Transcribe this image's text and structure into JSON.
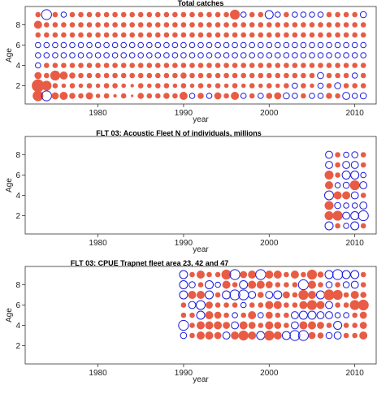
{
  "chart_data": [
    {
      "type": "scatter",
      "title": "Total catches",
      "xlabel": "year",
      "ylabel": "Age",
      "xlim": [
        1971.5,
        2012.5
      ],
      "ylim": [
        0.2,
        9.8
      ],
      "xticks": [
        1980,
        1990,
        2000,
        2010
      ],
      "yticks": [
        2,
        4,
        6,
        8
      ],
      "grid": false,
      "marker": "circle bubble; size = magnitude of residual",
      "positive_color": "#e85c45",
      "negative_color": "#1a1adb",
      "x": [
        1973,
        1974,
        1975,
        1976,
        1977,
        1978,
        1979,
        1980,
        1981,
        1982,
        1983,
        1984,
        1985,
        1986,
        1987,
        1988,
        1989,
        1990,
        1991,
        1992,
        1993,
        1994,
        1995,
        1996,
        1997,
        1998,
        1999,
        2000,
        2001,
        2002,
        2003,
        2004,
        2005,
        2006,
        2007,
        2008,
        2009,
        2010,
        2011
      ],
      "ages": [
        1,
        2,
        3,
        4,
        5,
        6,
        7,
        8,
        9
      ],
      "residuals": [
        [
          0.6,
          -0.55,
          0.4,
          0.45,
          0.35,
          0.3,
          0.4,
          0.25,
          0.3,
          0.2,
          0.3,
          0.15,
          0.35,
          0.3,
          0.3,
          0.35,
          0.3,
          0.45,
          -0.3,
          0.35,
          -0.3,
          0.4,
          0.3,
          0.45,
          -0.3,
          0.3,
          -0.3,
          0.35,
          0.4,
          -0.35,
          -0.3,
          0.3,
          -0.3,
          -0.3,
          0.35,
          0.3,
          -0.4,
          -0.3,
          -0.35
        ],
        [
          0.7,
          0.55,
          0.3,
          0.25,
          0.3,
          0.25,
          0.3,
          0.25,
          0.3,
          0.3,
          0.25,
          0.2,
          0.3,
          0.25,
          0.3,
          0.3,
          0.25,
          0.3,
          0.25,
          0.3,
          0.25,
          0.3,
          0.25,
          0.3,
          0.25,
          0.3,
          0.25,
          0.3,
          0.25,
          0.3,
          -0.3,
          0.3,
          0.25,
          -0.3,
          0.3,
          -0.35,
          0.3,
          0.3,
          0.3
        ],
        [
          0.4,
          0.3,
          0.55,
          0.45,
          0.35,
          0.3,
          0.3,
          0.3,
          0.3,
          0.3,
          0.3,
          0.3,
          0.3,
          0.3,
          0.3,
          0.3,
          0.3,
          0.35,
          0.3,
          0.3,
          0.3,
          0.3,
          0.3,
          0.3,
          0.3,
          0.3,
          0.3,
          0.3,
          0.3,
          0.3,
          0.3,
          0.3,
          0.3,
          -0.35,
          0.3,
          0.3,
          0.3,
          -0.3,
          0.3
        ],
        [
          -0.3,
          0.3,
          0.3,
          0.3,
          0.3,
          0.3,
          0.3,
          0.3,
          0.3,
          0.3,
          0.3,
          0.3,
          0.3,
          0.3,
          0.3,
          0.3,
          0.3,
          0.3,
          0.3,
          0.3,
          0.3,
          0.3,
          0.3,
          0.3,
          0.3,
          0.3,
          0.3,
          0.3,
          0.3,
          0.3,
          0.3,
          0.3,
          0.3,
          0.3,
          0.3,
          0.3,
          0.3,
          0.3,
          0.3
        ],
        [
          -0.3,
          -0.3,
          -0.3,
          -0.3,
          -0.3,
          -0.3,
          -0.3,
          -0.3,
          -0.3,
          -0.3,
          -0.3,
          -0.3,
          -0.3,
          -0.3,
          -0.3,
          -0.3,
          -0.3,
          -0.3,
          -0.3,
          -0.3,
          -0.3,
          -0.3,
          -0.3,
          -0.3,
          -0.3,
          -0.3,
          -0.3,
          -0.3,
          -0.3,
          -0.3,
          -0.3,
          -0.3,
          -0.3,
          -0.3,
          -0.3,
          -0.3,
          -0.3,
          -0.3,
          -0.3
        ],
        [
          -0.3,
          -0.3,
          -0.3,
          -0.3,
          -0.3,
          -0.3,
          -0.3,
          -0.3,
          -0.3,
          -0.3,
          -0.3,
          -0.3,
          -0.3,
          -0.3,
          -0.3,
          -0.3,
          -0.3,
          -0.3,
          -0.3,
          -0.3,
          -0.3,
          -0.3,
          -0.3,
          -0.3,
          -0.3,
          -0.3,
          -0.3,
          -0.3,
          -0.3,
          -0.3,
          -0.3,
          -0.3,
          -0.3,
          -0.3,
          -0.3,
          -0.3,
          -0.3,
          -0.3,
          -0.3
        ],
        [
          0.3,
          0.3,
          0.3,
          0.3,
          0.3,
          0.3,
          0.3,
          0.3,
          0.3,
          0.3,
          0.3,
          0.3,
          0.3,
          0.3,
          0.3,
          0.3,
          0.3,
          0.3,
          0.3,
          0.3,
          0.3,
          0.3,
          0.3,
          0.3,
          0.3,
          0.3,
          0.3,
          0.3,
          0.3,
          0.3,
          0.3,
          0.3,
          0.3,
          0.3,
          0.3,
          0.3,
          0.3,
          0.3,
          0.3
        ],
        [
          0.45,
          0.3,
          0.3,
          0.3,
          0.3,
          0.3,
          0.3,
          0.3,
          0.3,
          0.3,
          0.3,
          0.3,
          0.3,
          0.3,
          0.3,
          0.3,
          0.3,
          0.3,
          0.3,
          0.3,
          0.3,
          0.3,
          0.3,
          0.3,
          0.3,
          0.3,
          0.3,
          0.3,
          0.3,
          0.3,
          0.3,
          0.3,
          0.3,
          0.3,
          0.3,
          0.3,
          0.3,
          0.3,
          0.3
        ],
        [
          0.3,
          -0.55,
          0.3,
          -0.3,
          0.3,
          0.3,
          0.3,
          0.3,
          0.3,
          0.3,
          0.3,
          0.3,
          0.3,
          0.3,
          0.3,
          0.3,
          0.3,
          0.3,
          0.3,
          0.3,
          0.3,
          0.3,
          0.3,
          0.55,
          -0.3,
          0.3,
          0.3,
          -0.45,
          -0.3,
          0.3,
          -0.3,
          -0.3,
          -0.3,
          -0.3,
          0.3,
          0.3,
          0.3,
          0.3,
          -0.35
        ]
      ]
    },
    {
      "type": "scatter",
      "title": "FLT 03: Acoustic Fleet  N of individuals, millions",
      "xlabel": "year",
      "ylabel": "Age",
      "xlim": [
        1971.5,
        2012.5
      ],
      "ylim": [
        0.2,
        9.8
      ],
      "xticks": [
        1980,
        1990,
        2000,
        2010
      ],
      "yticks": [
        2,
        4,
        6,
        8
      ],
      "grid": false,
      "positive_color": "#e85c45",
      "negative_color": "#1a1adb",
      "x": [
        2007,
        2008,
        2009,
        2010,
        2011
      ],
      "ages": [
        1,
        2,
        3,
        4,
        5,
        6,
        7,
        8
      ],
      "residuals": [
        [
          -0.45,
          0.3,
          -0.3,
          -0.45,
          0.3
        ],
        [
          0.5,
          0.55,
          -0.4,
          -0.45,
          -0.55
        ],
        [
          0.5,
          -0.35,
          -0.3,
          -0.3,
          -0.4
        ],
        [
          -0.5,
          0.45,
          0.45,
          -0.4,
          0.3
        ],
        [
          0.45,
          -0.3,
          -0.35,
          0.55,
          -0.4
        ],
        [
          0.5,
          0.3,
          -0.45,
          -0.45,
          -0.3
        ],
        [
          -0.4,
          0.3,
          -0.4,
          -0.4,
          0.3
        ],
        [
          -0.4,
          0.3,
          -0.3,
          -0.35,
          0.3
        ]
      ]
    },
    {
      "type": "scatter",
      "title": "FLT 03: CPUE Trapnet fleet area 23, 42 and 47",
      "xlabel": "year",
      "ylabel": "Age",
      "xlim": [
        1971.5,
        2012.5
      ],
      "ylim": [
        0.2,
        9.8
      ],
      "xticks": [
        1980,
        1990,
        2000,
        2010
      ],
      "yticks": [
        2,
        4,
        6,
        8
      ],
      "grid": false,
      "positive_color": "#e85c45",
      "negative_color": "#1a1adb",
      "x": [
        1990,
        1991,
        1992,
        1993,
        1994,
        1995,
        1996,
        1997,
        1998,
        1999,
        2000,
        2001,
        2002,
        2003,
        2004,
        2005,
        2006,
        2007,
        2008,
        2009,
        2010,
        2011
      ],
      "ages": [
        3,
        4,
        5,
        6,
        7,
        8,
        9
      ],
      "residuals": [
        [
          -0.35,
          0.3,
          0.45,
          0.45,
          0.4,
          -0.4,
          0.45,
          0.55,
          0.45,
          -0.45,
          0.55,
          0.45,
          -0.45,
          -0.55,
          -0.55,
          0.4,
          0.35,
          -0.35,
          -0.4,
          0.3,
          0.3,
          0.45
        ],
        [
          -0.55,
          0.3,
          0.45,
          0.45,
          0.45,
          0.4,
          -0.4,
          0.45,
          0.4,
          0.3,
          0.45,
          0.4,
          0.3,
          -0.4,
          0.45,
          0.45,
          0.4,
          0.3,
          -0.45,
          0.3,
          0.3,
          0.4
        ],
        [
          0.3,
          0.3,
          -0.45,
          0.45,
          0.4,
          0.3,
          -0.3,
          0.3,
          0.45,
          -0.3,
          0.4,
          0.3,
          0.3,
          -0.4,
          -0.45,
          -0.45,
          -0.4,
          -0.4,
          -0.3,
          -0.3,
          0.3,
          0.4
        ],
        [
          0.3,
          -0.4,
          -0.5,
          0.4,
          0.3,
          0.3,
          0.3,
          -0.3,
          0.3,
          0.3,
          0.45,
          0.45,
          0.3,
          0.3,
          0.45,
          0.55,
          0.45,
          -0.4,
          0.3,
          0.3,
          0.55,
          0.6
        ],
        [
          -0.45,
          0.45,
          0.45,
          -0.45,
          0.3,
          -0.45,
          -0.55,
          -0.55,
          -0.4,
          0.35,
          -0.4,
          -0.45,
          0.4,
          0.3,
          0.55,
          0.45,
          -0.45,
          0.6,
          0.55,
          0.3,
          0.45,
          0.35
        ],
        [
          -0.45,
          -0.35,
          0.3,
          -0.45,
          -0.3,
          0.45,
          0.3,
          -0.45,
          0.45,
          0.45,
          0.4,
          0.3,
          0.3,
          0.3,
          -0.55,
          0.45,
          0.3,
          -0.35,
          0.3,
          -0.35,
          -0.4,
          0.3
        ],
        [
          -0.45,
          0.3,
          0.45,
          0.3,
          0.3,
          0.55,
          -0.55,
          0.4,
          0.45,
          -0.55,
          0.45,
          0.45,
          0.3,
          0.45,
          0.3,
          0.55,
          0.35,
          -0.45,
          -0.55,
          -0.45,
          -0.45,
          0.3
        ]
      ]
    }
  ]
}
